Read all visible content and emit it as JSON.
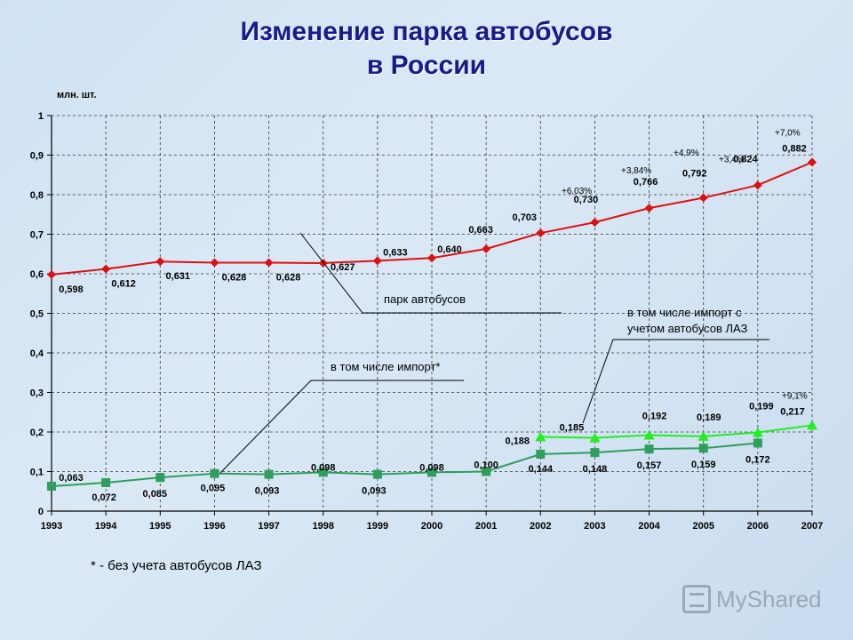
{
  "title_line1": "Изменение парка автобусов",
  "title_line2": "в России",
  "footnote": "* - без учета автобусов ЛАЗ",
  "logo_text": "MyShared",
  "chart_data": {
    "type": "line",
    "ylabel": "млн. шт.",
    "ylim": [
      0,
      1
    ],
    "yticks": [
      "0",
      "0,1",
      "0,2",
      "0,3",
      "0,4",
      "0,5",
      "0,6",
      "0,7",
      "0,8",
      "0,9",
      "1"
    ],
    "grid": "horizontal dashed",
    "x": [
      "1993",
      "1994",
      "1995",
      "1996",
      "1997",
      "1998",
      "1999",
      "2000",
      "2001",
      "2002",
      "2003",
      "2004",
      "2005",
      "2006",
      "2007"
    ],
    "series": [
      {
        "name": "парк автобусов",
        "color": "#dd1111",
        "marker": "diamond",
        "values": [
          0.598,
          0.612,
          0.631,
          0.628,
          0.628,
          0.627,
          0.633,
          0.64,
          0.663,
          0.703,
          0.73,
          0.766,
          0.792,
          0.824,
          0.882
        ],
        "labels": [
          "0,598",
          "0,612",
          "0,631",
          "0,628",
          "0,628",
          "0,627",
          "0,633",
          "0,640",
          "0,663",
          "0,703",
          "0,730",
          "0,766",
          "0,792",
          "0,824",
          "0,882"
        ]
      },
      {
        "name": "в том числе импорт*",
        "color": "#2e9e5c",
        "marker": "square",
        "values": [
          0.063,
          0.072,
          0.085,
          0.095,
          0.093,
          0.098,
          0.093,
          0.098,
          0.1,
          0.144,
          0.148,
          0.157,
          0.159,
          0.172,
          null
        ],
        "labels": [
          "0,063",
          "0,072",
          "0,085",
          "0,095",
          "0,093",
          "0,098",
          "0,093",
          "0,098",
          "0,100",
          "0,144",
          "0,148",
          "0,157",
          "0,159",
          "0,172",
          null
        ]
      },
      {
        "name": "в том числе импорт с учетом автобусов ЛАЗ",
        "color": "#22ee22",
        "marker": "triangle",
        "values": [
          null,
          null,
          null,
          null,
          null,
          null,
          null,
          null,
          null,
          0.188,
          0.185,
          0.192,
          0.189,
          0.199,
          0.217
        ],
        "labels": [
          null,
          null,
          null,
          null,
          null,
          null,
          null,
          null,
          null,
          "0,188",
          "0,185",
          "0,192",
          "0,189",
          "0,199",
          "0,217"
        ]
      }
    ],
    "legend_lines": [
      "парк автобусов",
      "в том числе импорт*",
      "в том числе импорт с",
      "учетом автобусов ЛАЗ"
    ],
    "growth_annotations": [
      {
        "x": "2002",
        "text": "+6,03%"
      },
      {
        "x": "2003",
        "text": "+3,84%"
      },
      {
        "x": "2004",
        "text": "+4,9%"
      },
      {
        "x": "2005",
        "text": "+3,4%"
      },
      {
        "x": "2006",
        "text": "+7,0%"
      },
      {
        "x": "2006",
        "text": "+9,1%"
      }
    ]
  }
}
